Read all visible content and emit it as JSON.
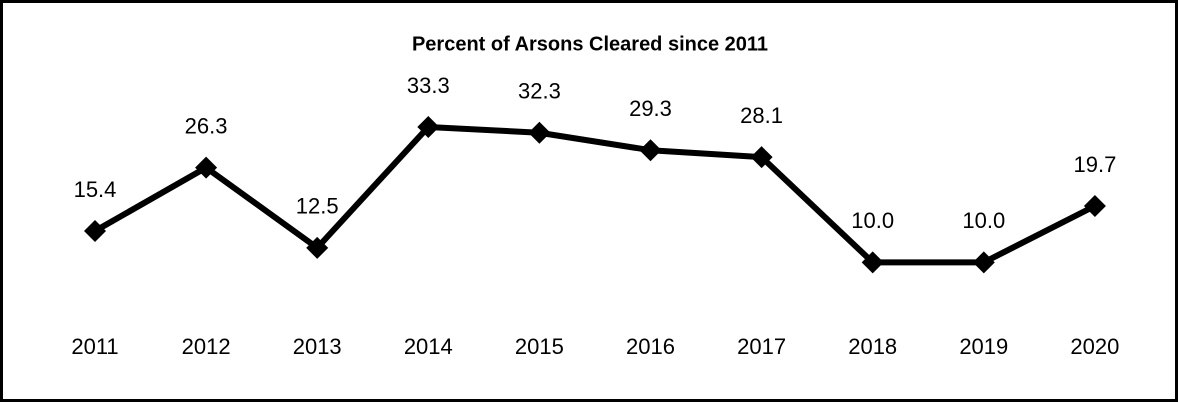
{
  "chart_data": {
    "type": "line",
    "title": "Percent of  Arsons Cleared since 2011",
    "categories": [
      "2011",
      "2012",
      "2013",
      "2014",
      "2015",
      "2016",
      "2017",
      "2018",
      "2019",
      "2020"
    ],
    "series": [
      {
        "name": "Percent of Arsons Cleared",
        "color": "#000000",
        "values": [
          15.4,
          26.3,
          12.5,
          33.3,
          32.3,
          29.3,
          28.1,
          10.0,
          10.0,
          19.7
        ],
        "value_labels": [
          "15.4",
          "26.3",
          "12.5",
          "33.3",
          "32.3",
          "29.3",
          "28.1",
          "10.0",
          "10.0",
          "19.7"
        ]
      }
    ],
    "ylim": [
      0,
      40
    ]
  }
}
